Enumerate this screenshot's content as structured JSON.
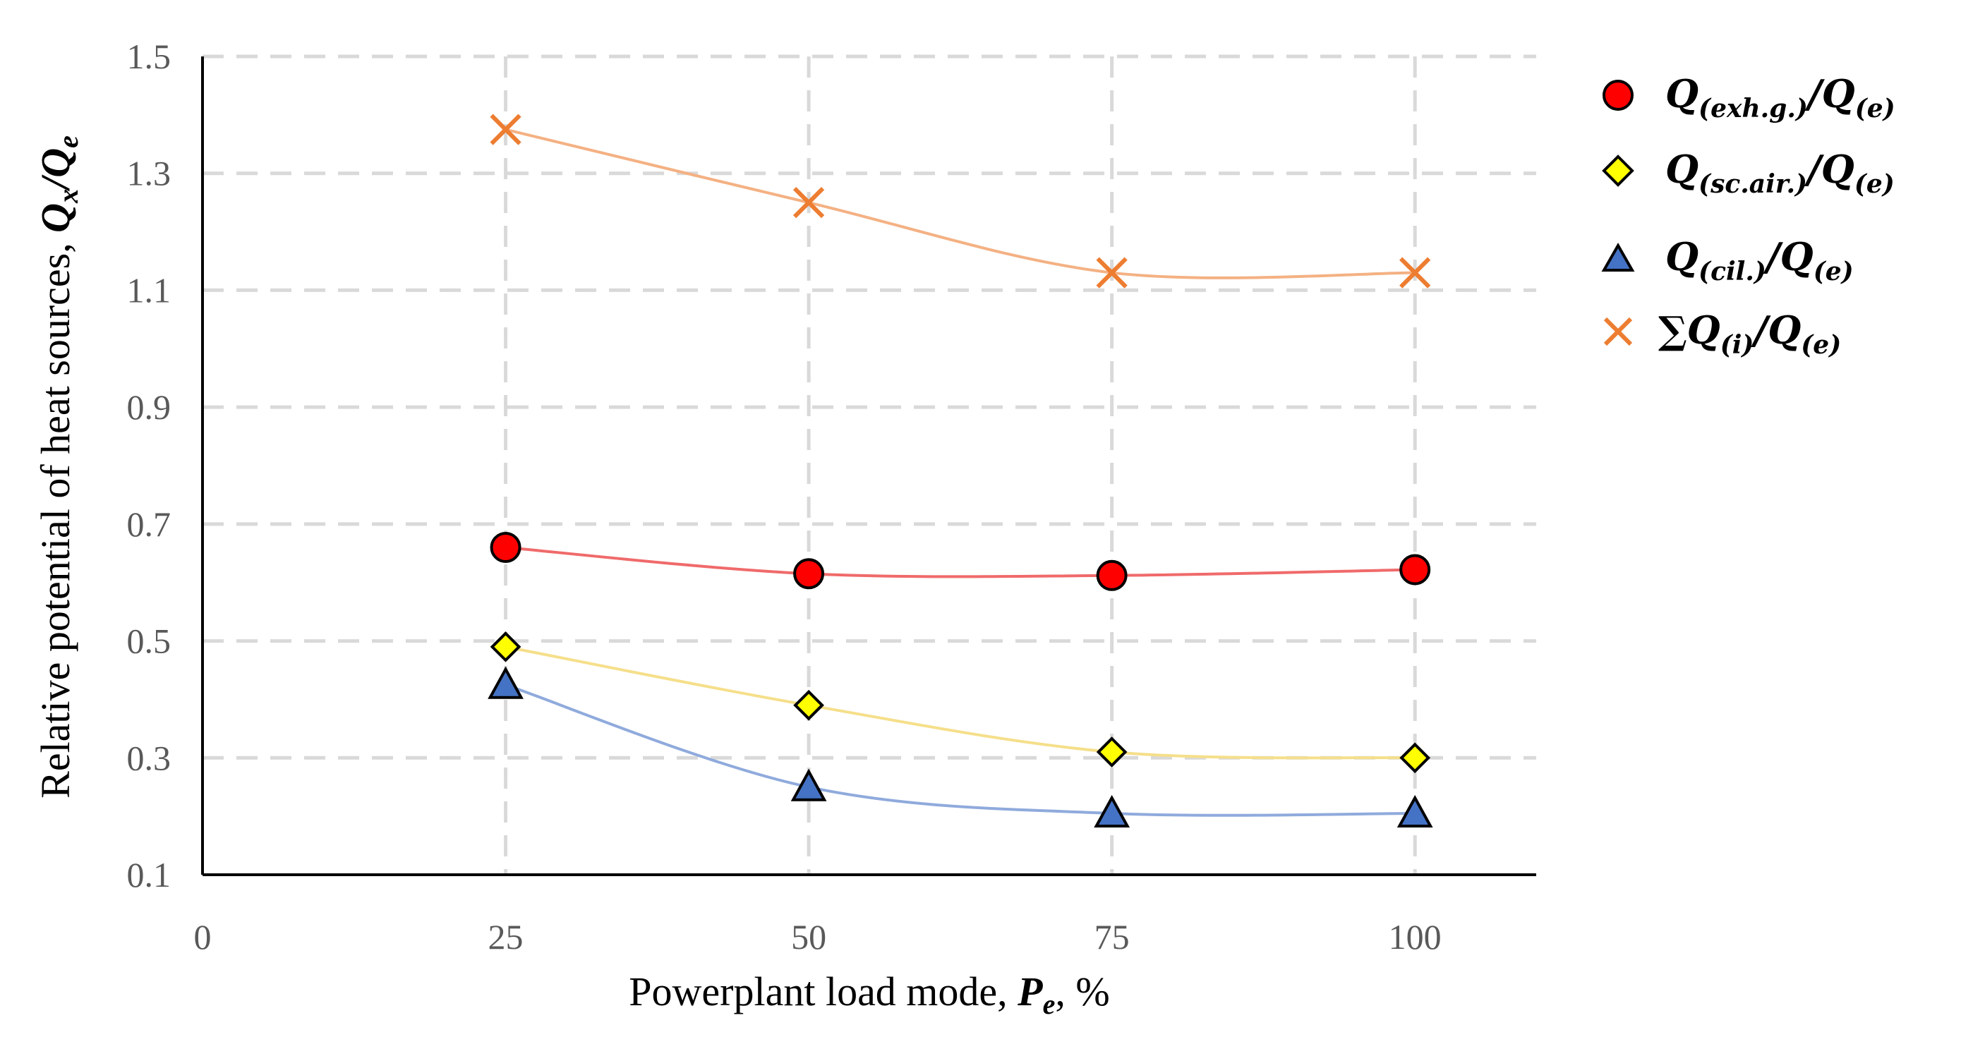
{
  "chart_data": {
    "type": "line",
    "title": "",
    "xlabel": "Powerplant load mode, P_e, %",
    "ylabel": "Relative potential of  heat sources, Q_x/Q_e",
    "xlim": [
      0,
      110
    ],
    "ylim": [
      0.1,
      1.5
    ],
    "x_ticks": [
      0,
      25,
      50,
      75,
      100
    ],
    "y_ticks": [
      0.1,
      0.3,
      0.5,
      0.7,
      0.9,
      1.1,
      1.3,
      1.5
    ],
    "grid": true,
    "legend_position": "right",
    "x": [
      25,
      50,
      75,
      100
    ],
    "series": [
      {
        "name": "Q(exh.g.)/Q(e)",
        "marker": "circle",
        "color": "#ff0000",
        "line_color": "#f06a6a",
        "values": [
          0.66,
          0.615,
          0.612,
          0.622
        ]
      },
      {
        "name": "Q(sc.air.)/Q(e)",
        "marker": "diamond",
        "color": "#ffff00",
        "line_color": "#f5df8a",
        "values": [
          0.49,
          0.39,
          0.31,
          0.3
        ]
      },
      {
        "name": "Q(cil.)/Q(e)",
        "marker": "triangle",
        "color": "#4472c4",
        "line_color": "#8faadc",
        "values": [
          0.425,
          0.25,
          0.205,
          0.205
        ]
      },
      {
        "name": "∑Q(i)/Q(e)",
        "marker": "x",
        "color": "#ed7d31",
        "line_color": "#f4b183",
        "values": [
          1.375,
          1.25,
          1.13,
          1.13
        ]
      }
    ]
  },
  "axis_title": {
    "x_prefix": "Powerplant load mode, ",
    "x_symbol": "P",
    "x_sub": "e",
    "x_suffix": ", %",
    "y_prefix": "Relative potential of  heat sources, ",
    "y_symbol1": "Q",
    "y_sub1": "x",
    "y_slash": "/",
    "y_symbol2": "Q",
    "y_sub2": "e"
  },
  "legend": [
    {
      "q1": "Q",
      "sub1": "(exh.g.)",
      "slash": "/",
      "q2": "Q",
      "sub2": "(e)"
    },
    {
      "q1": "Q",
      "sub1": "(sc.air.)",
      "slash": "/",
      "q2": "Q",
      "sub2": "(e)"
    },
    {
      "q1": "Q",
      "sub1": "(cil.)",
      "slash": "/",
      "q2": "Q",
      "sub2": "(e)"
    },
    {
      "prefix": "∑",
      "q1": "Q",
      "sub1": "(i)",
      "slash": "/",
      "q2": "Q",
      "sub2": "(e)"
    }
  ]
}
